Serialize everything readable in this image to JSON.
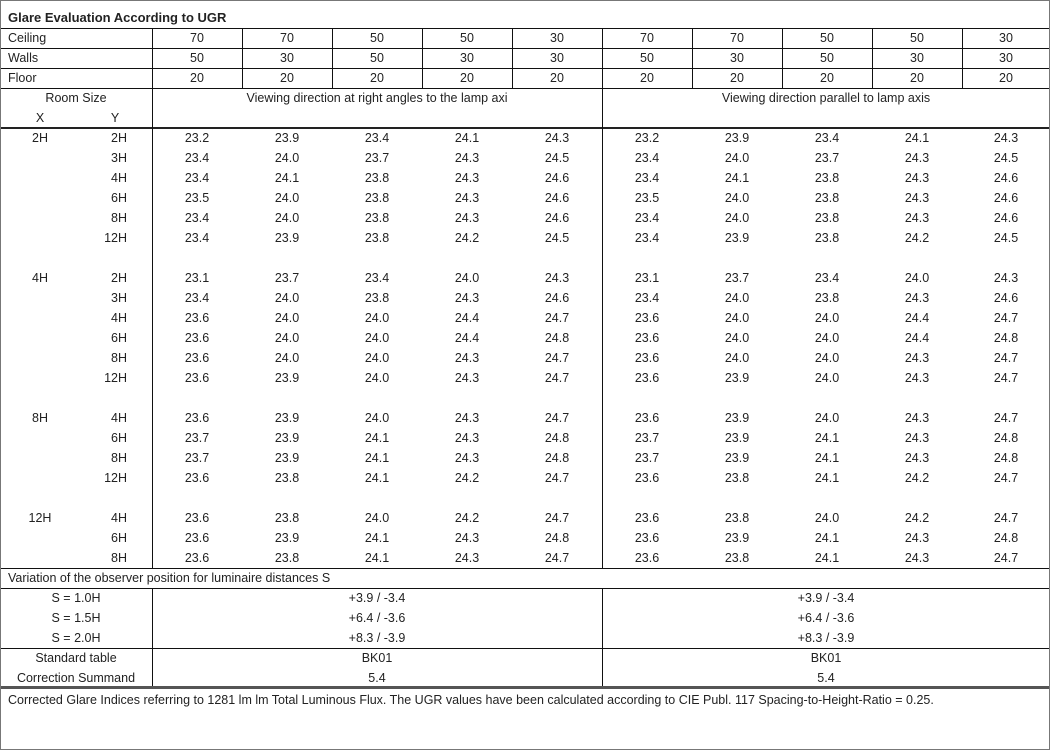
{
  "title": "Glare Evaluation According to UGR",
  "reflectances": [
    {
      "label": "Ceiling",
      "values": [
        "70",
        "70",
        "50",
        "50",
        "30",
        "70",
        "70",
        "50",
        "50",
        "30"
      ]
    },
    {
      "label": "Walls",
      "values": [
        "50",
        "30",
        "50",
        "30",
        "30",
        "50",
        "30",
        "50",
        "30",
        "30"
      ]
    },
    {
      "label": "Floor",
      "values": [
        "20",
        "20",
        "20",
        "20",
        "20",
        "20",
        "20",
        "20",
        "20",
        "20"
      ]
    }
  ],
  "header": {
    "room_size": "Room Size",
    "x": "X",
    "y": "Y",
    "left_direction": "Viewing direction at right angles to the lamp axi",
    "right_direction": "Viewing direction parallel to lamp axis"
  },
  "groups": [
    {
      "x": "2H",
      "rows": [
        {
          "y": "2H",
          "left": [
            "23.2",
            "23.9",
            "23.4",
            "24.1",
            "24.3"
          ],
          "right": [
            "23.2",
            "23.9",
            "23.4",
            "24.1",
            "24.3"
          ]
        },
        {
          "y": "3H",
          "left": [
            "23.4",
            "24.0",
            "23.7",
            "24.3",
            "24.5"
          ],
          "right": [
            "23.4",
            "24.0",
            "23.7",
            "24.3",
            "24.5"
          ]
        },
        {
          "y": "4H",
          "left": [
            "23.4",
            "24.1",
            "23.8",
            "24.3",
            "24.6"
          ],
          "right": [
            "23.4",
            "24.1",
            "23.8",
            "24.3",
            "24.6"
          ]
        },
        {
          "y": "6H",
          "left": [
            "23.5",
            "24.0",
            "23.8",
            "24.3",
            "24.6"
          ],
          "right": [
            "23.5",
            "24.0",
            "23.8",
            "24.3",
            "24.6"
          ]
        },
        {
          "y": "8H",
          "left": [
            "23.4",
            "24.0",
            "23.8",
            "24.3",
            "24.6"
          ],
          "right": [
            "23.4",
            "24.0",
            "23.8",
            "24.3",
            "24.6"
          ]
        },
        {
          "y": "12H",
          "left": [
            "23.4",
            "23.9",
            "23.8",
            "24.2",
            "24.5"
          ],
          "right": [
            "23.4",
            "23.9",
            "23.8",
            "24.2",
            "24.5"
          ]
        }
      ]
    },
    {
      "x": "4H",
      "rows": [
        {
          "y": "2H",
          "left": [
            "23.1",
            "23.7",
            "23.4",
            "24.0",
            "24.3"
          ],
          "right": [
            "23.1",
            "23.7",
            "23.4",
            "24.0",
            "24.3"
          ]
        },
        {
          "y": "3H",
          "left": [
            "23.4",
            "24.0",
            "23.8",
            "24.3",
            "24.6"
          ],
          "right": [
            "23.4",
            "24.0",
            "23.8",
            "24.3",
            "24.6"
          ]
        },
        {
          "y": "4H",
          "left": [
            "23.6",
            "24.0",
            "24.0",
            "24.4",
            "24.7"
          ],
          "right": [
            "23.6",
            "24.0",
            "24.0",
            "24.4",
            "24.7"
          ]
        },
        {
          "y": "6H",
          "left": [
            "23.6",
            "24.0",
            "24.0",
            "24.4",
            "24.8"
          ],
          "right": [
            "23.6",
            "24.0",
            "24.0",
            "24.4",
            "24.8"
          ]
        },
        {
          "y": "8H",
          "left": [
            "23.6",
            "24.0",
            "24.0",
            "24.3",
            "24.7"
          ],
          "right": [
            "23.6",
            "24.0",
            "24.0",
            "24.3",
            "24.7"
          ]
        },
        {
          "y": "12H",
          "left": [
            "23.6",
            "23.9",
            "24.0",
            "24.3",
            "24.7"
          ],
          "right": [
            "23.6",
            "23.9",
            "24.0",
            "24.3",
            "24.7"
          ]
        }
      ]
    },
    {
      "x": "8H",
      "rows": [
        {
          "y": "4H",
          "left": [
            "23.6",
            "23.9",
            "24.0",
            "24.3",
            "24.7"
          ],
          "right": [
            "23.6",
            "23.9",
            "24.0",
            "24.3",
            "24.7"
          ]
        },
        {
          "y": "6H",
          "left": [
            "23.7",
            "23.9",
            "24.1",
            "24.3",
            "24.8"
          ],
          "right": [
            "23.7",
            "23.9",
            "24.1",
            "24.3",
            "24.8"
          ]
        },
        {
          "y": "8H",
          "left": [
            "23.7",
            "23.9",
            "24.1",
            "24.3",
            "24.8"
          ],
          "right": [
            "23.7",
            "23.9",
            "24.1",
            "24.3",
            "24.8"
          ]
        },
        {
          "y": "12H",
          "left": [
            "23.6",
            "23.8",
            "24.1",
            "24.2",
            "24.7"
          ],
          "right": [
            "23.6",
            "23.8",
            "24.1",
            "24.2",
            "24.7"
          ]
        }
      ]
    },
    {
      "x": "12H",
      "rows": [
        {
          "y": "4H",
          "left": [
            "23.6",
            "23.8",
            "24.0",
            "24.2",
            "24.7"
          ],
          "right": [
            "23.6",
            "23.8",
            "24.0",
            "24.2",
            "24.7"
          ]
        },
        {
          "y": "6H",
          "left": [
            "23.6",
            "23.9",
            "24.1",
            "24.3",
            "24.8"
          ],
          "right": [
            "23.6",
            "23.9",
            "24.1",
            "24.3",
            "24.8"
          ]
        },
        {
          "y": "8H",
          "left": [
            "23.6",
            "23.8",
            "24.1",
            "24.3",
            "24.7"
          ],
          "right": [
            "23.6",
            "23.8",
            "24.1",
            "24.3",
            "24.7"
          ]
        }
      ]
    }
  ],
  "variation": {
    "title": "Variation of the observer position for luminaire distances S",
    "rows": [
      {
        "label": "S = 1.0H",
        "left": "+3.9 / -3.4",
        "right": "+3.9 / -3.4"
      },
      {
        "label": "S = 1.5H",
        "left": "+6.4 / -3.6",
        "right": "+6.4 / -3.6"
      },
      {
        "label": "S = 2.0H",
        "left": "+8.3 / -3.9",
        "right": "+8.3 / -3.9"
      }
    ]
  },
  "standard": [
    {
      "label": "Standard table",
      "left": "BK01",
      "right": "BK01"
    },
    {
      "label": "Correction Summand",
      "left": "5.4",
      "right": "5.4"
    }
  ],
  "footer": "Corrected Glare Indices referring to 1281 lm lm Total Luminous Flux. The UGR values have been calculated according to CIE Publ. 117    Spacing-to-Height-Ratio = 0.25."
}
